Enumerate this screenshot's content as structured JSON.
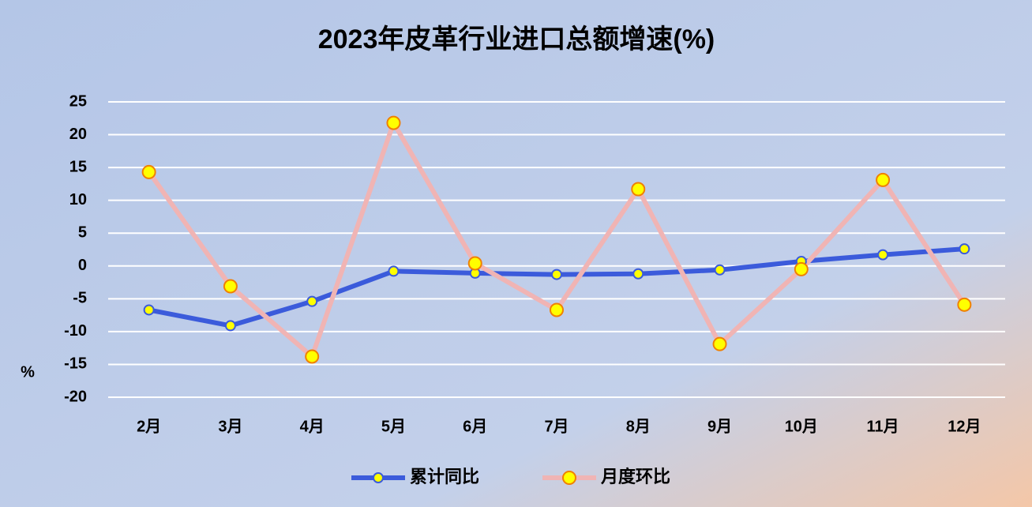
{
  "chart_data": {
    "type": "line",
    "title": "2023年皮革行业进口总额增速(%)",
    "y_label": "%",
    "categories": [
      "2月",
      "3月",
      "4月",
      "5月",
      "6月",
      "7月",
      "8月",
      "9月",
      "10月",
      "11月",
      "12月"
    ],
    "series": [
      {
        "name": "累计同比",
        "color": "#3b5bdb",
        "marker_color": "#ffff00",
        "values": [
          -6.7,
          -9.1,
          -5.4,
          -0.8,
          -1.1,
          -1.3,
          -1.2,
          -0.6,
          0.7,
          1.7,
          2.6
        ]
      },
      {
        "name": "月度环比",
        "color": "#f0b4b4",
        "marker_color": "#ffff00",
        "values": [
          14.3,
          -3.1,
          -13.8,
          21.8,
          0.4,
          -6.7,
          11.7,
          -11.9,
          -0.5,
          13.1,
          -5.9
        ]
      }
    ],
    "ylim": [
      -20,
      25
    ],
    "yticks": [
      -20,
      -15,
      -10,
      -5,
      0,
      5,
      10,
      15,
      20,
      25
    ],
    "grid": true,
    "legend": "bottom"
  }
}
